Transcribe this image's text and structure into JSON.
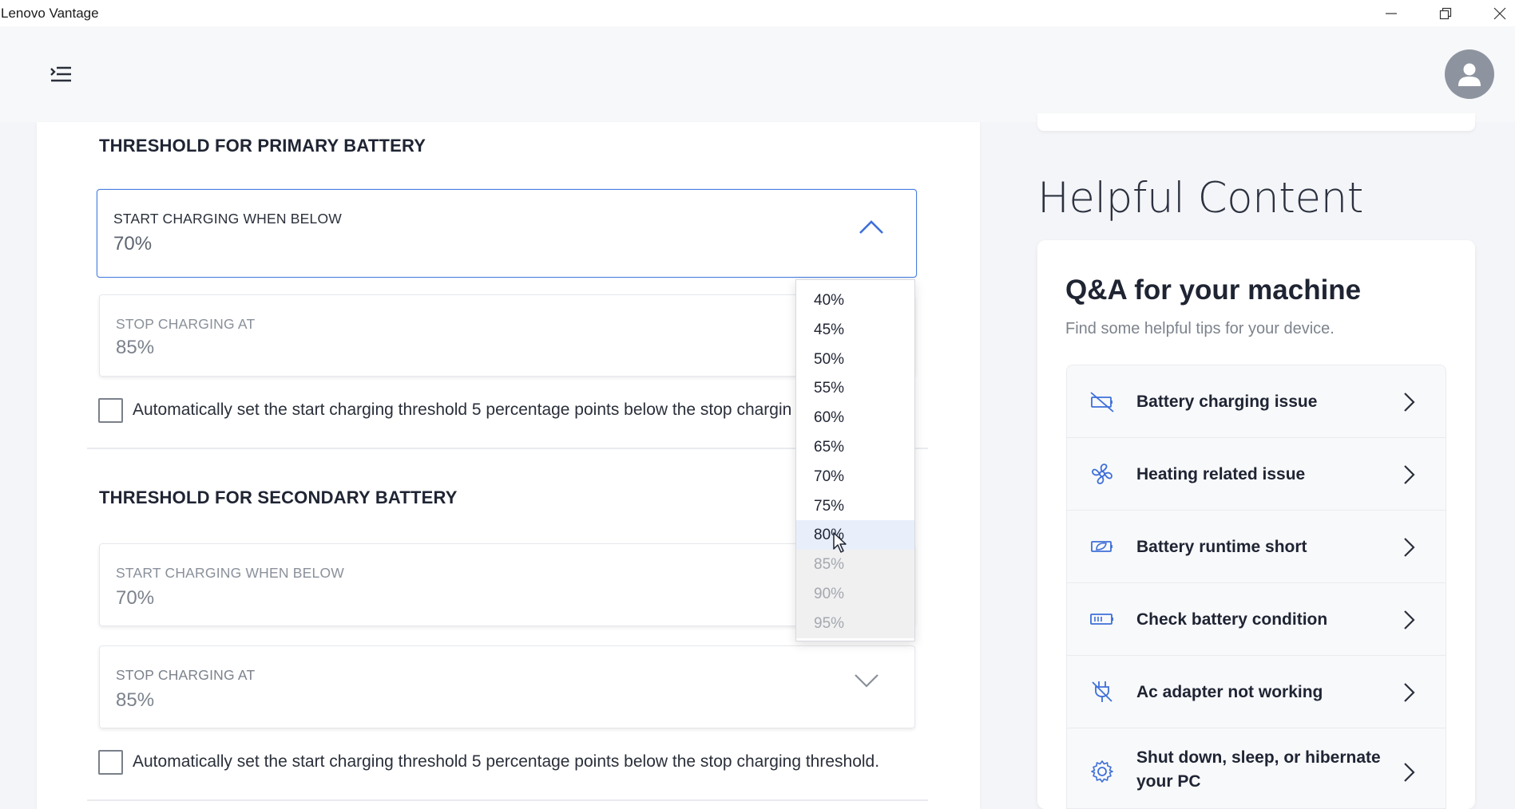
{
  "window": {
    "title": "Lenovo Vantage"
  },
  "primary": {
    "section_title": "THRESHOLD FOR PRIMARY BATTERY",
    "start": {
      "label": "START CHARGING WHEN BELOW",
      "value": "70%"
    },
    "stop": {
      "label": "STOP CHARGING AT",
      "value": "85%"
    },
    "auto_text": "Automatically set the start charging threshold 5 percentage points below the stop chargin"
  },
  "dropdown": {
    "options": [
      "40%",
      "45%",
      "50%",
      "55%",
      "60%",
      "65%",
      "70%",
      "75%",
      "80%",
      "85%",
      "90%",
      "95%"
    ],
    "hovered": "80%",
    "disabled": [
      "85%",
      "90%",
      "95%"
    ]
  },
  "secondary": {
    "section_title": "THRESHOLD FOR SECONDARY BATTERY",
    "start": {
      "label": "START CHARGING WHEN BELOW",
      "value": "70%"
    },
    "stop": {
      "label": "STOP CHARGING AT",
      "value": "85%"
    },
    "auto_text": "Automatically set the start charging threshold 5 percentage points below the stop charging threshold."
  },
  "helpful": {
    "heading": "Helpful Content",
    "qa_title": "Q&A for your machine",
    "qa_subtitle": "Find some helpful tips for your device.",
    "items": [
      {
        "label": "Battery charging issue",
        "icon": "battery-slash-icon"
      },
      {
        "label": "Heating related issue",
        "icon": "fan-icon"
      },
      {
        "label": "Battery runtime short",
        "icon": "battery-leaf-icon"
      },
      {
        "label": "Check battery condition",
        "icon": "battery-icon"
      },
      {
        "label": "Ac adapter not working",
        "icon": "plug-slash-icon"
      },
      {
        "label": "Shut down, sleep, or hibernate your PC",
        "icon": "gear-icon"
      }
    ]
  },
  "colors": {
    "accent": "#4a7fe0",
    "icon_blue": "#3e6fd8"
  }
}
